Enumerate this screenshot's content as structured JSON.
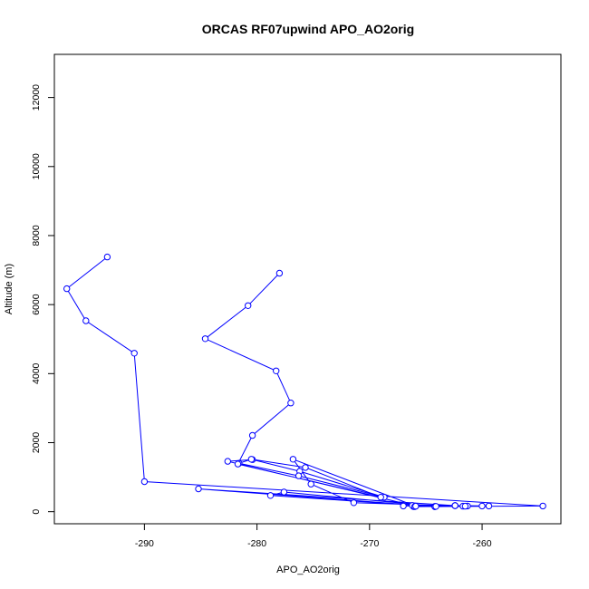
{
  "chart_data": {
    "type": "line",
    "title": "ORCAS RF07upwind APO_AO2orig",
    "xlabel": "APO_AO2orig",
    "ylabel": "Altitude (m)",
    "xlim": [
      -298,
      -253
    ],
    "ylim": [
      -350,
      13250
    ],
    "x_ticks": [
      -290,
      -280,
      -270,
      -260
    ],
    "y_ticks": [
      0,
      2000,
      4000,
      6000,
      8000,
      10000,
      12000
    ],
    "x_tick_labels": [
      "-290",
      "-280",
      "-270",
      "-260"
    ],
    "y_tick_labels": [
      "0",
      "2000",
      "4000",
      "6000",
      "8000",
      "10000",
      "12000"
    ],
    "grid": false,
    "legend": "none",
    "marker": "open-circle",
    "color": "#0000ff",
    "series": [
      {
        "x": [
          -293.3,
          -296.9,
          -295.2,
          -290.9,
          -290.0,
          -254.6,
          -264.2,
          -266.1,
          -266.2,
          -267.0,
          -262.4,
          -261.7,
          -261.3,
          -264.2,
          -260.0,
          -259.4,
          -262.4,
          -285.2,
          -264.2,
          -278.8,
          -277.6,
          -264.1,
          -262.4,
          -266.0,
          -261.5,
          -271.4,
          -275.2,
          -276.8,
          -265.9,
          -282.6,
          -280.4,
          -276.2,
          -268.7,
          -276.3,
          -281.6,
          -280.5,
          -275.7,
          -269.0,
          -281.7,
          -280.4,
          -277.0,
          -278.3,
          -284.6,
          -280.8,
          -278.0
        ],
        "y": [
          7380,
          6460,
          5530,
          4590,
          870,
          165,
          150,
          150,
          180,
          165,
          175,
          160,
          165,
          145,
          165,
          165,
          175,
          660,
          150,
          470,
          570,
          155,
          175,
          145,
          160,
          260,
          800,
          1520,
          160,
          1460,
          1510,
          1170,
          420,
          1040,
          1400,
          1520,
          1280,
          420,
          1380,
          2210,
          3150,
          4080,
          5010,
          5970,
          6910
        ]
      }
    ]
  }
}
